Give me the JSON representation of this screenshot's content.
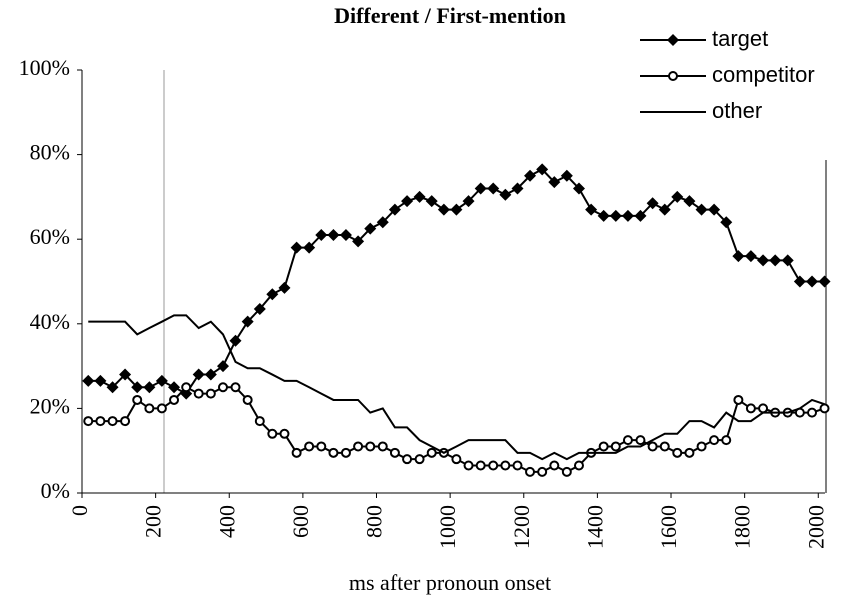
{
  "chart_data": {
    "type": "line",
    "title": "Different / First-mention",
    "xlabel": "ms after pronoun onset",
    "x": [
      17,
      50,
      83,
      117,
      150,
      183,
      217,
      250,
      283,
      317,
      350,
      383,
      417,
      450,
      483,
      517,
      550,
      583,
      617,
      650,
      683,
      717,
      750,
      783,
      817,
      850,
      883,
      917,
      950,
      983,
      1017,
      1050,
      1083,
      1117,
      1150,
      1183,
      1217,
      1250,
      1283,
      1317,
      1350,
      1383,
      1417,
      1450,
      1483,
      1517,
      1550,
      1583,
      1617,
      1650,
      1683,
      1717,
      1750,
      1783,
      1817,
      1850,
      1883,
      1917,
      1950,
      1983,
      2017
    ],
    "series": [
      {
        "name": "target",
        "color": "#000000",
        "marker": "diamond",
        "values": [
          26.5,
          26.5,
          25,
          28,
          25,
          25,
          26.5,
          25,
          23.5,
          28,
          28,
          30,
          36,
          40.5,
          43.5,
          47,
          48.5,
          58,
          58,
          61,
          61,
          61,
          59.5,
          62.5,
          64,
          67,
          69,
          70,
          69,
          67,
          67,
          69,
          72,
          72,
          70.5,
          72,
          75,
          76.5,
          73.5,
          75,
          72,
          67,
          65.5,
          65.5,
          65.5,
          65.5,
          68.5,
          67,
          70,
          69,
          67,
          67,
          64,
          56,
          56,
          55,
          55,
          55,
          50,
          50,
          50
        ]
      },
      {
        "name": "competitor",
        "color": "#000000",
        "marker": "circle",
        "values": [
          17,
          17,
          17,
          17,
          22,
          20,
          20,
          22,
          25,
          23.5,
          23.5,
          25,
          25,
          22,
          17,
          14,
          14,
          9.5,
          11,
          11,
          9.5,
          9.5,
          11,
          11,
          11,
          9.5,
          8,
          8,
          9.5,
          9.5,
          8,
          6.5,
          6.5,
          6.5,
          6.5,
          6.5,
          5,
          5,
          6.5,
          5,
          6.5,
          9.5,
          11,
          11,
          12.5,
          12.5,
          11,
          11,
          9.5,
          9.5,
          11,
          12.5,
          12.5,
          22,
          20,
          20,
          19,
          19,
          19,
          19,
          20
        ]
      },
      {
        "name": "other",
        "color": "#000000",
        "marker": "none",
        "values": [
          40.5,
          40.5,
          40.5,
          40.5,
          37.5,
          39,
          40.5,
          42,
          42,
          39,
          40.5,
          37.5,
          31,
          29.5,
          29.5,
          28,
          26.5,
          26.5,
          25,
          23.5,
          22,
          22,
          22,
          19,
          20,
          15.5,
          15.5,
          12.5,
          11,
          9.5,
          11,
          12.5,
          12.5,
          12.5,
          12.5,
          9.5,
          9.5,
          8,
          9.5,
          8,
          9.5,
          9.5,
          9.5,
          9.5,
          11,
          11,
          12.5,
          14,
          14,
          17,
          17,
          15.5,
          19,
          17,
          17,
          19,
          19,
          19,
          20,
          22,
          21
        ]
      }
    ],
    "xlim": [
      0,
      2040
    ],
    "xticks": [
      0,
      200,
      400,
      600,
      800,
      1000,
      1200,
      1400,
      1600,
      1800,
      2000
    ],
    "ylim": [
      0,
      100
    ],
    "yticks": [
      {
        "value": 0,
        "label": "0%"
      },
      {
        "value": 20,
        "label": "20%"
      },
      {
        "value": 40,
        "label": "40%"
      },
      {
        "value": 60,
        "label": "60%"
      },
      {
        "value": 80,
        "label": "80%"
      },
      {
        "value": 100,
        "label": "100%"
      }
    ],
    "grid": false,
    "legend": "upper right"
  }
}
